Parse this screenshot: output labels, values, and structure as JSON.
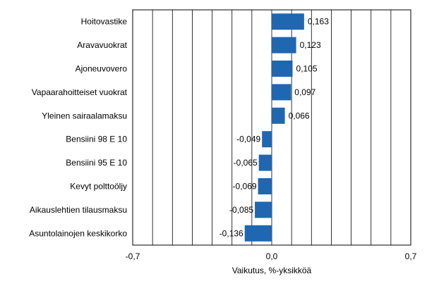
{
  "chart_data": {
    "type": "bar",
    "orientation": "horizontal",
    "categories": [
      "Hoitovastike",
      "Aravavuokrat",
      "Ajoneuvovero",
      "Vapaarahoitteiset vuokrat",
      "Yleinen sairaalamaksu",
      "Bensiini 98 E 10",
      "Bensiini 95 E 10",
      "Kevyt polttoöljy",
      "Aikauslehtien tilausmaksu",
      "Asuntolainojen keskikorko"
    ],
    "values": [
      0.163,
      0.123,
      0.105,
      0.097,
      0.066,
      -0.049,
      -0.065,
      -0.069,
      -0.085,
      -0.136
    ],
    "value_labels": [
      "0,163",
      "0,123",
      "0,105",
      "0,097",
      "0,066",
      "-0,049",
      "-0,065",
      "-0,069",
      "-0,085",
      "-0,136"
    ],
    "xlim": [
      -0.7,
      0.7
    ],
    "x_tick_labels": [
      "-0,7",
      "0,0",
      "0,7"
    ],
    "xlabel": "Vaikutus, %-yksikköä",
    "grid": true,
    "bar_color": "#1f67b0"
  }
}
